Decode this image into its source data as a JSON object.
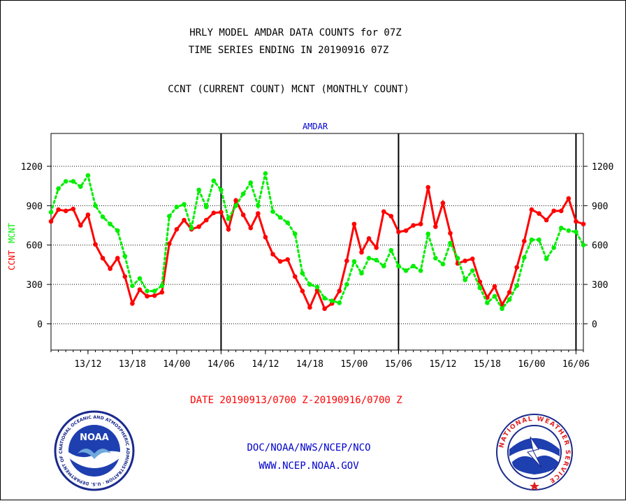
{
  "header": {
    "title_line1": "HRLY MODEL AMDAR DATA COUNTS for 07Z",
    "title_line2": "TIME SERIES ENDING IN 20190916 07Z",
    "subtitle": "CCNT (CURRENT COUNT) MCNT (MONTHLY COUNT)"
  },
  "footer": {
    "date_range": "DATE 20190913/0700 Z-20190916/0700 Z",
    "org": "DOC/NOAA/NWS/NCEP/NCO",
    "url": "WWW.NCEP.NOAA.GOV"
  },
  "logos": {
    "noaa_text": "NOAA",
    "noaa_ring": "NATIONAL OCEANIC AND ATMOSPHERIC ADMINISTRATION · U.S. DEPARTMENT OF COMMERCE",
    "nws_ring": "NATIONAL WEATHER SERVICE"
  },
  "colors": {
    "ccnt": "#ff0000",
    "mcnt": "#00ee00",
    "dataset_label": "#0000cc",
    "footer_org": "#0000cc",
    "footer_date": "#ff0000"
  },
  "chart_data": {
    "type": "line",
    "title": "AMDAR",
    "ylabel_ccnt": "CCNT",
    "ylabel_mcnt": "MCNT",
    "ylim": [
      -200,
      1450
    ],
    "xlim_hours": [
      0,
      72
    ],
    "yticks": [
      0,
      300,
      600,
      900,
      1200
    ],
    "yticks_right": [
      "0",
      "300",
      "600",
      "900",
      "1200"
    ],
    "xtick_labels": [
      "13/12",
      "13/18",
      "14/00",
      "14/06",
      "14/12",
      "14/18",
      "15/00",
      "15/06",
      "15/12",
      "15/18",
      "16/00",
      "16/06"
    ],
    "xtick_hours": [
      5,
      11,
      17,
      23,
      29,
      35,
      41,
      47,
      53,
      59,
      65,
      71
    ],
    "day_boundary_hours": [
      23,
      47,
      71
    ],
    "grid": true,
    "series": [
      {
        "name": "CCNT",
        "style": "solid",
        "values": [
          780,
          870,
          860,
          875,
          750,
          830,
          605,
          500,
          420,
          500,
          360,
          155,
          260,
          210,
          215,
          240,
          610,
          720,
          790,
          720,
          740,
          790,
          845,
          850,
          720,
          940,
          830,
          730,
          840,
          660,
          530,
          475,
          490,
          360,
          250,
          125,
          255,
          115,
          155,
          250,
          480,
          760,
          545,
          650,
          580,
          855,
          820,
          700,
          710,
          750,
          760,
          1040,
          740,
          920,
          690,
          460,
          480,
          495,
          320,
          200,
          285,
          145,
          240,
          430,
          630,
          870,
          840,
          790,
          860,
          860,
          955,
          780,
          760
        ]
      },
      {
        "name": "MCNT",
        "style": "dotted",
        "values": [
          850,
          1030,
          1085,
          1085,
          1045,
          1130,
          900,
          815,
          760,
          710,
          515,
          290,
          345,
          250,
          250,
          290,
          820,
          890,
          910,
          730,
          1020,
          890,
          1090,
          1020,
          800,
          900,
          990,
          1075,
          900,
          1145,
          855,
          810,
          770,
          685,
          385,
          300,
          280,
          195,
          175,
          160,
          300,
          475,
          385,
          500,
          485,
          440,
          560,
          440,
          405,
          440,
          405,
          685,
          500,
          455,
          615,
          500,
          335,
          405,
          275,
          160,
          210,
          115,
          185,
          290,
          505,
          640,
          640,
          495,
          580,
          730,
          710,
          700,
          600
        ]
      }
    ]
  }
}
